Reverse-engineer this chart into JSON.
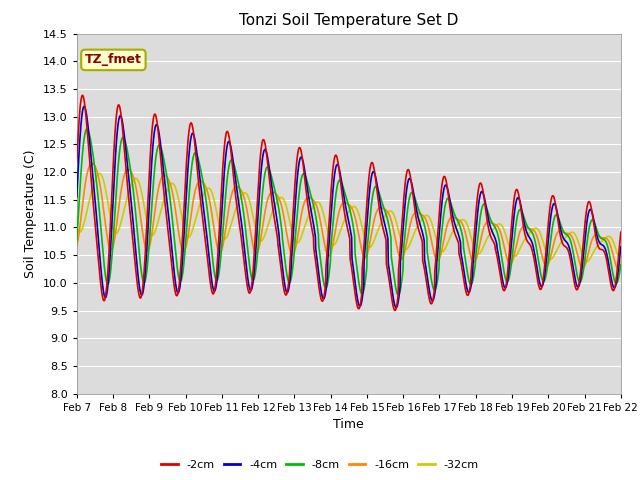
{
  "title": "Tonzi Soil Temperature Set D",
  "xlabel": "Time",
  "ylabel": "Soil Temperature (C)",
  "ylim": [
    8.0,
    14.5
  ],
  "yticks": [
    8.0,
    8.5,
    9.0,
    9.5,
    10.0,
    10.5,
    11.0,
    11.5,
    12.0,
    12.5,
    13.0,
    13.5,
    14.0,
    14.5
  ],
  "legend_label": "TZ_fmet",
  "series_labels": [
    "-2cm",
    "-4cm",
    "-8cm",
    "-16cm",
    "-32cm"
  ],
  "series_colors": [
    "#dd0000",
    "#0000cc",
    "#00bb00",
    "#ff8800",
    "#cccc00"
  ],
  "plot_bg_color": "#dcdcdc",
  "grid_color": "#ffffff",
  "xtick_positions": [
    7,
    8,
    9,
    10,
    11,
    12,
    13,
    14,
    15,
    16,
    17,
    18,
    19,
    20,
    21,
    22
  ],
  "xtick_labels": [
    "Feb 7",
    "Feb 8",
    "Feb 9",
    "Feb 10",
    "Feb 11",
    "Feb 12",
    "Feb 13",
    "Feb 14",
    "Feb 15",
    "Feb 16",
    "Feb 17",
    "Feb 18",
    "Feb 19",
    "Feb 20",
    "Feb 21",
    "Feb 22"
  ],
  "x_start": 7,
  "x_end": 22
}
